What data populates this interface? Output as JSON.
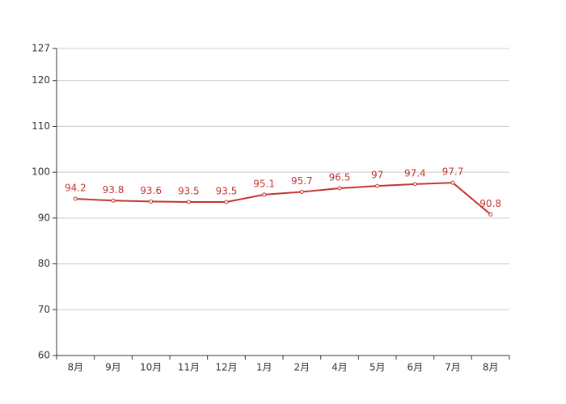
{
  "chart_data": {
    "type": "line",
    "categories": [
      "8月",
      "9月",
      "10月",
      "11月",
      "12月",
      "1月",
      "2月",
      "4月",
      "5月",
      "6月",
      "7月",
      "8月"
    ],
    "series": [
      {
        "color": "#c23531",
        "values": [
          94.2,
          93.8,
          93.6,
          93.5,
          93.5,
          95.1,
          95.7,
          96.5,
          97,
          97.4,
          97.7,
          90.8
        ]
      }
    ],
    "ylim": [
      60,
      127
    ],
    "yticks": [
      60,
      70,
      80,
      90,
      100,
      110,
      120,
      127
    ],
    "grid": true
  }
}
